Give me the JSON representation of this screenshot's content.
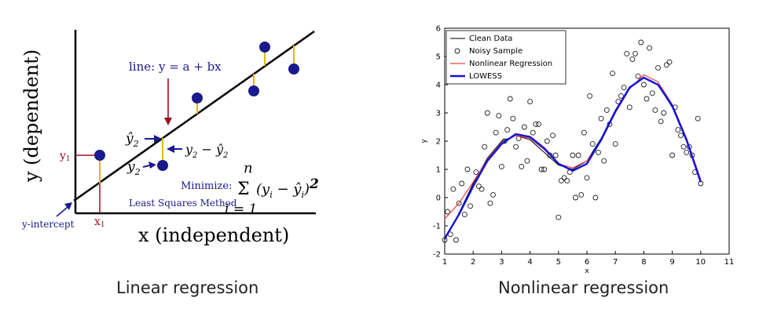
{
  "captions": {
    "left": "Linear regression",
    "right": "Nonlinear regression"
  },
  "linear": {
    "ylabel": "y (dependent)",
    "xlabel": "x (independent)",
    "line_label": "line:  y = a + bx",
    "y1": "y",
    "y1_sub": "1",
    "x1": "x",
    "x1_sub": "1",
    "yhat2": "ŷ",
    "yhat2_sub": "2",
    "y2": "y",
    "y2_sub": "2",
    "resid_y": "y",
    "resid_y_sub": "2",
    "resid_op": " − ",
    "resid_yhat": "ŷ",
    "resid_yhat_sub": "2",
    "intercept": "y-intercept",
    "minimize": "Minimize:",
    "method": "Least Squares Method",
    "sum_top": "n",
    "sum_sign": "Σ",
    "sum_bottom": "i = 1",
    "sum_term": "(y",
    "sum_i": "i",
    "sum_minus": " − ŷ",
    "sum_i2": "i",
    "sum_close": ")",
    "sum_sq": "2",
    "colors": {
      "line": "#000000",
      "points": "#1a1a8c",
      "residual": "#e6b800",
      "marker": "#9b1020",
      "text_blue": "#1a1a8c"
    }
  },
  "chart_data": {
    "type": "scatter",
    "xlabel": "x",
    "ylabel": "y",
    "xlim": [
      1,
      11
    ],
    "ylim": [
      -2,
      6
    ],
    "xticks": [
      1,
      2,
      3,
      4,
      5,
      6,
      7,
      8,
      9,
      10,
      11
    ],
    "yticks": [
      -2,
      -1,
      0,
      1,
      2,
      3,
      4,
      5,
      6
    ],
    "legend_position": "top-left",
    "legend": [
      "Clean Data",
      "Noisy Sample",
      "Nonlinear Regression",
      "LOWESS"
    ],
    "colors": {
      "clean": "#000000",
      "noisy": "#222222",
      "nonlinear": "#e84040",
      "lowess": "#1111dd"
    },
    "noisy": [
      [
        1.0,
        -1.5
      ],
      [
        1.1,
        -0.5
      ],
      [
        1.2,
        -1.3
      ],
      [
        1.3,
        0.3
      ],
      [
        1.4,
        -1.5
      ],
      [
        1.5,
        -0.2
      ],
      [
        1.6,
        0.5
      ],
      [
        1.7,
        -0.6
      ],
      [
        1.8,
        1.0
      ],
      [
        1.9,
        -0.3
      ],
      [
        2.1,
        0.9
      ],
      [
        2.2,
        0.4
      ],
      [
        2.3,
        0.3
      ],
      [
        2.4,
        1.8
      ],
      [
        2.5,
        3.0
      ],
      [
        2.6,
        -0.2
      ],
      [
        2.7,
        0.1
      ],
      [
        2.8,
        2.3
      ],
      [
        2.9,
        2.9
      ],
      [
        3.0,
        1.1
      ],
      [
        3.1,
        2.0
      ],
      [
        3.2,
        2.4
      ],
      [
        3.3,
        3.5
      ],
      [
        3.4,
        2.8
      ],
      [
        3.5,
        1.8
      ],
      [
        3.6,
        2.1
      ],
      [
        3.7,
        1.1
      ],
      [
        3.8,
        2.5
      ],
      [
        3.9,
        1.3
      ],
      [
        4.0,
        3.4
      ],
      [
        4.1,
        2.3
      ],
      [
        4.2,
        2.6
      ],
      [
        4.3,
        2.6
      ],
      [
        4.4,
        1.0
      ],
      [
        4.5,
        1.0
      ],
      [
        4.6,
        2.0
      ],
      [
        4.7,
        1.5
      ],
      [
        4.8,
        2.2
      ],
      [
        4.9,
        1.5
      ],
      [
        5.0,
        -0.7
      ],
      [
        5.1,
        0.6
      ],
      [
        5.2,
        0.7
      ],
      [
        5.3,
        0.6
      ],
      [
        5.4,
        0.9
      ],
      [
        5.5,
        1.5
      ],
      [
        5.6,
        0.0
      ],
      [
        5.7,
        1.5
      ],
      [
        5.8,
        0.1
      ],
      [
        5.9,
        2.3
      ],
      [
        6.0,
        0.7
      ],
      [
        6.1,
        3.6
      ],
      [
        6.2,
        1.9
      ],
      [
        6.3,
        0.0
      ],
      [
        6.4,
        1.6
      ],
      [
        6.5,
        2.8
      ],
      [
        6.6,
        1.3
      ],
      [
        6.7,
        3.1
      ],
      [
        6.8,
        2.6
      ],
      [
        6.9,
        4.4
      ],
      [
        7.0,
        1.9
      ],
      [
        7.1,
        3.4
      ],
      [
        7.2,
        3.6
      ],
      [
        7.3,
        3.9
      ],
      [
        7.4,
        5.1
      ],
      [
        7.5,
        3.2
      ],
      [
        7.6,
        4.9
      ],
      [
        7.7,
        5.1
      ],
      [
        7.8,
        4.3
      ],
      [
        7.9,
        5.5
      ],
      [
        8.0,
        4.0
      ],
      [
        8.1,
        3.5
      ],
      [
        8.2,
        5.3
      ],
      [
        8.3,
        3.7
      ],
      [
        8.4,
        3.1
      ],
      [
        8.5,
        4.6
      ],
      [
        8.6,
        2.7
      ],
      [
        8.7,
        3.0
      ],
      [
        8.8,
        4.7
      ],
      [
        8.9,
        4.8
      ],
      [
        9.0,
        1.5
      ],
      [
        9.1,
        3.2
      ],
      [
        9.2,
        2.4
      ],
      [
        9.3,
        2.2
      ],
      [
        9.4,
        1.8
      ],
      [
        9.5,
        1.6
      ],
      [
        9.6,
        1.8
      ],
      [
        9.7,
        1.5
      ],
      [
        9.8,
        0.9
      ],
      [
        9.9,
        2.8
      ],
      [
        10.0,
        0.5
      ]
    ],
    "clean": [
      [
        1.0,
        -1.5
      ],
      [
        1.5,
        -0.55
      ],
      [
        2.0,
        0.5
      ],
      [
        2.5,
        1.4
      ],
      [
        3.0,
        2.0
      ],
      [
        3.5,
        2.2
      ],
      [
        4.0,
        2.05
      ],
      [
        4.5,
        1.6
      ],
      [
        5.0,
        1.15
      ],
      [
        5.5,
        1.0
      ],
      [
        6.0,
        1.3
      ],
      [
        6.5,
        2.1
      ],
      [
        7.0,
        3.1
      ],
      [
        7.5,
        3.9
      ],
      [
        8.0,
        4.25
      ],
      [
        8.5,
        4.0
      ],
      [
        9.0,
        3.2
      ],
      [
        9.5,
        2.0
      ],
      [
        10.0,
        0.6
      ]
    ],
    "nonlinear": [
      [
        1.0,
        -0.75
      ],
      [
        1.5,
        -0.2
      ],
      [
        2.0,
        0.55
      ],
      [
        2.5,
        1.35
      ],
      [
        3.0,
        1.95
      ],
      [
        3.5,
        2.2
      ],
      [
        4.0,
        2.1
      ],
      [
        4.5,
        1.7
      ],
      [
        5.0,
        1.2
      ],
      [
        5.5,
        1.05
      ],
      [
        6.0,
        1.3
      ],
      [
        6.5,
        2.0
      ],
      [
        7.0,
        3.0
      ],
      [
        7.5,
        3.85
      ],
      [
        8.0,
        4.35
      ],
      [
        8.5,
        4.1
      ],
      [
        9.0,
        3.3
      ],
      [
        9.5,
        2.1
      ],
      [
        10.0,
        0.65
      ]
    ],
    "lowess": [
      [
        1.0,
        -1.45
      ],
      [
        1.5,
        -0.6
      ],
      [
        2.0,
        0.4
      ],
      [
        2.5,
        1.3
      ],
      [
        3.0,
        1.9
      ],
      [
        3.5,
        2.25
      ],
      [
        4.0,
        2.15
      ],
      [
        4.5,
        1.75
      ],
      [
        5.0,
        1.2
      ],
      [
        5.5,
        0.95
      ],
      [
        6.0,
        1.2
      ],
      [
        6.5,
        2.05
      ],
      [
        7.0,
        3.05
      ],
      [
        7.5,
        3.9
      ],
      [
        8.0,
        4.25
      ],
      [
        8.5,
        4.0
      ],
      [
        9.0,
        3.25
      ],
      [
        9.5,
        2.05
      ],
      [
        10.0,
        0.55
      ]
    ]
  }
}
